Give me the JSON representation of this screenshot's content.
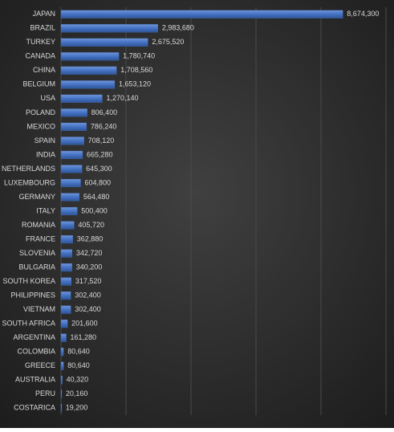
{
  "chart_data": {
    "type": "bar",
    "orientation": "horizontal",
    "categories": [
      "JAPAN",
      "BRAZIL",
      "TURKEY",
      "CANADA",
      "CHINA",
      "BELGIUM",
      "USA",
      "POLAND",
      "MEXICO",
      "SPAIN",
      "INDIA",
      "NETHERLANDS",
      "LUXEMBOURG",
      "GERMANY",
      "ITALY",
      "ROMANIA",
      "FRANCE",
      "SLOVENIA",
      "BULGARIA",
      "SOUTH KOREA",
      "PHILIPPINES",
      "VIETNAM",
      "SOUTH AFRICA",
      "ARGENTINA",
      "COLOMBIA",
      "GREECE",
      "AUSTRALIA",
      "PERU",
      "COSTARICA"
    ],
    "values": [
      8674300,
      2983680,
      2675520,
      1780740,
      1708560,
      1653120,
      1270140,
      806400,
      786240,
      708120,
      665280,
      645300,
      604800,
      564480,
      500400,
      405720,
      362880,
      342720,
      340200,
      317520,
      302400,
      302400,
      201600,
      161280,
      80640,
      80640,
      40320,
      20160,
      19200
    ],
    "value_labels": [
      "8,674,300",
      "2,983,680",
      "2,675,520",
      "1,780,740",
      "1,708,560",
      "1,653,120",
      "1,270,140",
      "806,400",
      "786,240",
      "708,120",
      "665,280",
      "645,300",
      "604,800",
      "564,480",
      "500,400",
      "405,720",
      "362,880",
      "342,720",
      "340,200",
      "317,520",
      "302,400",
      "302,400",
      "201,600",
      "161,280",
      "80,640",
      "80,640",
      "40,320",
      "20,160",
      "19,200"
    ],
    "color": "#4472c4",
    "xlim": [
      0,
      10000000
    ],
    "xticks": [
      0,
      2000000,
      4000000,
      6000000,
      8000000,
      10000000
    ],
    "grid": true
  }
}
